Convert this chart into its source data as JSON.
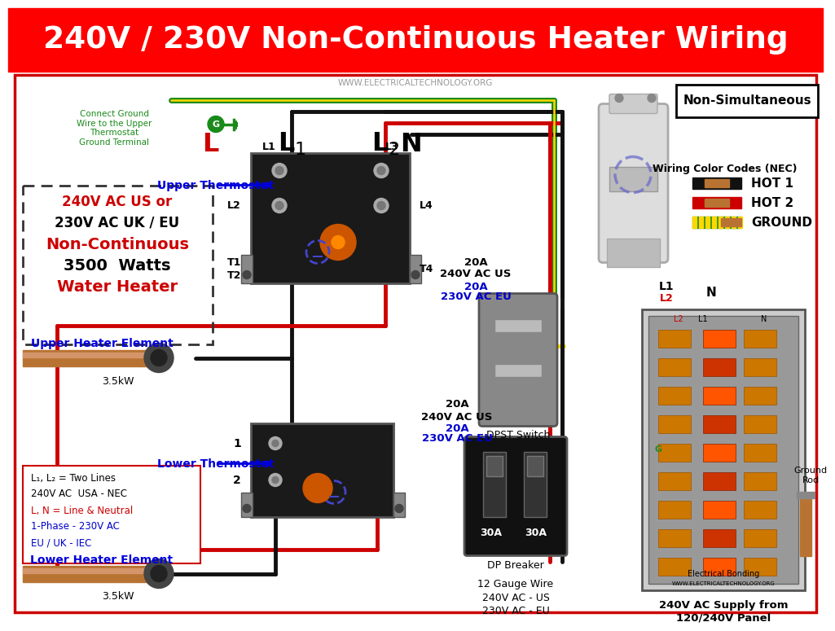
{
  "title": "240V / 230V Non-Continuous Heater Wiring",
  "title_bg": "#FF0000",
  "title_color": "#FFFFFF",
  "website": "WWW.ELECTRICALTECHNOLOGY.ORG",
  "website_color": "#888888",
  "bg_color": "#FFFFFF",
  "non_simultaneous_label": "Non-Simultaneous",
  "wiring_color_codes_title": "Wiring Color Codes (NEC)",
  "hot1_label": "HOT 1",
  "hot2_label": "HOT 2",
  "ground_label": "GROUND",
  "upper_thermostat_label": "Upper Thermostat",
  "lower_thermostat_label": "Lower Thermostat",
  "upper_element_label": "Upper Heater Element",
  "lower_element_label": "Lower Heater Element",
  "upper_element_power": "3.5kW",
  "lower_element_power": "3.5kW",
  "spec_line1_red": "240V AC US or",
  "spec_line2_blk": "230V AC UK / EU",
  "spec_line3_red": "Non-Continuous",
  "spec_line4_blk": "3500  Watts",
  "spec_line5_red": "Water Heater",
  "info_line1": "L₁, L₂ = Two Lines",
  "info_line2": "240V AC  USA - NEC",
  "info_line3": "L, N = Line & Neutral",
  "info_line4": "1-Phase - 230V AC",
  "info_line5": "EU / UK - IEC",
  "dpst_label": "DPST Switch",
  "dp_breaker_label": "DP Breaker",
  "wire_12gauge": "12 Gauge Wire",
  "supply1": "240V AC - US",
  "supply2": "230V AC - EU",
  "panel_label_line1": "240V AC Supply from",
  "panel_label_line2": "120/240V Panel",
  "sw_spec1": "20A",
  "sw_spec2": "240V AC US",
  "sw_spec3": "20A",
  "sw_spec4": "230V AC EU",
  "br_spec1": "20A",
  "br_spec2": "240V AC US",
  "br_spec3": "20A",
  "br_spec4": "230V AC EU",
  "ground_text": "Connect Ground\nWire to the Upper\nThermostat\nGround Terminal",
  "elec_bonding": "Electrical Bonding",
  "website_small": "WWW.ELECTRICALTECHNOLOGY.ORG",
  "ground_rod_label": "Ground\nRod",
  "bk": "#111111",
  "rd": "#CC0000",
  "gn": "#1a8a1a",
  "yw": "#FFD700",
  "lw": 3.5
}
